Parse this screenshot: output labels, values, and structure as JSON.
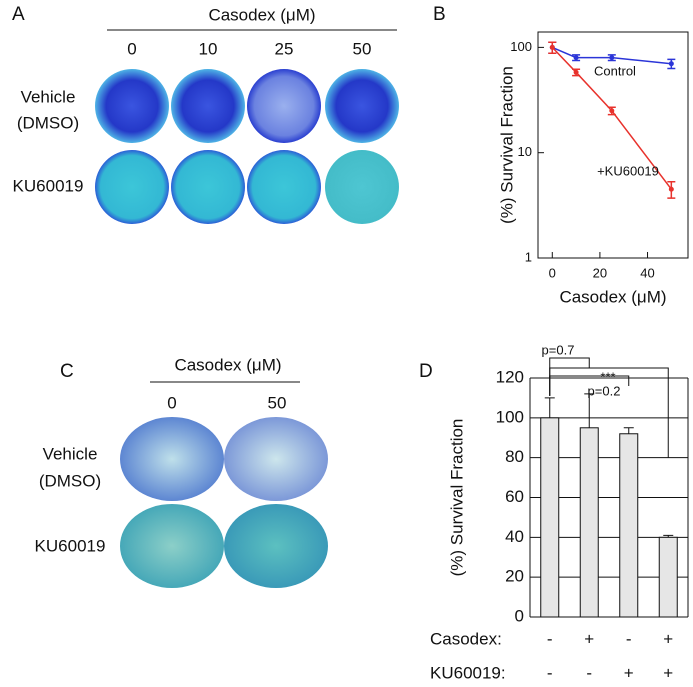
{
  "panels": {
    "A": {
      "label": "A",
      "header": "Casodex (μM)",
      "columns": [
        "0",
        "10",
        "25",
        "50"
      ],
      "rows": [
        "Vehicle",
        "(DMSO)",
        "KU60019"
      ]
    },
    "C": {
      "label": "C",
      "header": "Casodex (μM)",
      "columns": [
        "0",
        "50"
      ],
      "rows": [
        "Vehicle",
        "(DMSO)",
        "KU60019"
      ]
    }
  },
  "chart_data": [
    {
      "type": "line",
      "label": "B",
      "xlabel": "Casodex (μM)",
      "ylabel": "(%) Survival Fraction",
      "x": [
        0,
        10,
        25,
        50
      ],
      "xlim": [
        -6,
        57
      ],
      "xticks": [
        0,
        20,
        40
      ],
      "ylim": [
        1,
        140
      ],
      "yticks": [
        1,
        10,
        100
      ],
      "log_y": true,
      "series": [
        {
          "name": "Control",
          "color": "#2b35d8",
          "values": [
            100,
            80,
            80,
            70
          ],
          "errors": [
            12,
            5,
            5,
            7
          ]
        },
        {
          "name": "+KU60019",
          "color": "#e8322c",
          "values": [
            100,
            58,
            25,
            4.5
          ],
          "errors": [
            12,
            4,
            2,
            0.8
          ]
        }
      ]
    },
    {
      "type": "bar",
      "label": "D",
      "ylabel": "(%) Survival Fraction",
      "categories": [
        null,
        null,
        null,
        null
      ],
      "values": [
        100,
        95,
        92,
        40
      ],
      "errors": [
        10,
        17,
        3,
        1
      ],
      "color": "#e6e6e6",
      "ylim": [
        0,
        120
      ],
      "yticks": [
        0,
        20,
        40,
        60,
        80,
        100,
        120
      ],
      "grid": true,
      "x_rows": [
        {
          "label": "Casodex:",
          "values": [
            "-",
            "+",
            "-",
            "+"
          ]
        },
        {
          "label": "KU60019:",
          "values": [
            "-",
            "-",
            "+",
            "+"
          ]
        }
      ],
      "annotations": [
        "p=0.7",
        "p=0.2",
        "***"
      ]
    }
  ]
}
